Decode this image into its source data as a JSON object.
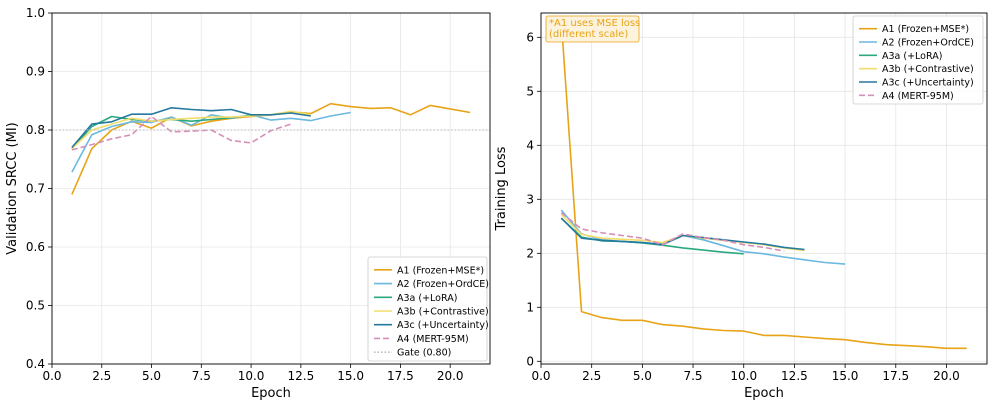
{
  "chart_data": [
    {
      "type": "line",
      "xlabel": "Epoch",
      "ylabel": "Validation SRCC (MI)",
      "xlim": [
        0.0,
        22.0
      ],
      "ylim": [
        0.4,
        1.0
      ],
      "xticks": [
        "0.0",
        "2.5",
        "5.0",
        "7.5",
        "10.0",
        "12.5",
        "15.0",
        "17.5",
        "20.0"
      ],
      "yticks": [
        "0.4",
        "0.5",
        "0.6",
        "0.7",
        "0.8",
        "0.9",
        "1.0"
      ],
      "grid": true,
      "legend_position": "lower-right",
      "series": [
        {
          "name": "A1 (Frozen+MSE*)",
          "color": "#E8A317",
          "dash": "solid",
          "x": [
            1,
            2,
            3,
            4,
            5,
            6,
            7,
            8,
            9,
            10,
            11,
            12,
            13,
            14,
            15,
            16,
            17,
            18,
            19,
            20,
            21
          ],
          "y": [
            0.69,
            0.768,
            0.8,
            0.815,
            0.803,
            0.822,
            0.807,
            0.815,
            0.82,
            0.823,
            0.826,
            0.831,
            0.828,
            0.845,
            0.84,
            0.837,
            0.838,
            0.826,
            0.842,
            0.836,
            0.83
          ]
        },
        {
          "name": "A2 (Frozen+OrdCE)",
          "color": "#6BB8E0",
          "dash": "solid",
          "x": [
            1,
            2,
            3,
            4,
            5,
            6,
            7,
            8,
            9,
            10,
            11,
            12,
            13,
            14,
            15
          ],
          "y": [
            0.728,
            0.792,
            0.806,
            0.814,
            0.813,
            0.822,
            0.808,
            0.826,
            0.82,
            0.826,
            0.817,
            0.82,
            0.816,
            0.824,
            0.83
          ]
        },
        {
          "name": "A3a (+LoRA)",
          "color": "#2CA87F",
          "dash": "solid",
          "x": [
            1,
            2,
            3,
            4,
            5,
            6,
            7,
            8,
            9,
            10
          ],
          "y": [
            0.768,
            0.806,
            0.823,
            0.818,
            0.815,
            0.818,
            0.815,
            0.818,
            0.821,
            0.825
          ]
        },
        {
          "name": "A3b (+Contrastive)",
          "color": "#F2DD6B",
          "dash": "solid",
          "x": [
            1,
            2,
            3,
            4,
            5,
            6,
            7,
            8,
            9,
            10,
            11,
            12,
            13
          ],
          "y": [
            0.768,
            0.8,
            0.81,
            0.82,
            0.815,
            0.818,
            0.82,
            0.822,
            0.822,
            0.824,
            0.826,
            0.832,
            0.826
          ]
        },
        {
          "name": "A3c (+Uncertainty)",
          "color": "#24799F",
          "dash": "solid",
          "x": [
            1,
            2,
            3,
            4,
            5,
            6,
            7,
            8,
            9,
            10,
            11,
            12,
            13
          ],
          "y": [
            0.77,
            0.81,
            0.814,
            0.827,
            0.827,
            0.838,
            0.835,
            0.833,
            0.835,
            0.826,
            0.826,
            0.829,
            0.824
          ]
        },
        {
          "name": "A4 (MERT-95M)",
          "color": "#D68FB8",
          "dash": "dashed",
          "x": [
            1,
            2,
            3,
            4,
            5,
            6,
            7,
            8,
            9,
            10,
            11,
            12
          ],
          "y": [
            0.766,
            0.775,
            0.785,
            0.792,
            0.823,
            0.797,
            0.798,
            0.8,
            0.782,
            0.778,
            0.799,
            0.81
          ]
        },
        {
          "name": "Gate (0.80)",
          "color": "#BBBBBB",
          "dash": "dotted",
          "hline": 0.8
        }
      ]
    },
    {
      "type": "line",
      "xlabel": "Epoch",
      "ylabel": "Training Loss",
      "xlim": [
        0.0,
        22.0
      ],
      "ylim": [
        -0.05,
        6.45
      ],
      "xticks": [
        "0.0",
        "2.5",
        "5.0",
        "7.5",
        "10.0",
        "12.5",
        "15.0",
        "17.5",
        "20.0"
      ],
      "yticks": [
        "0",
        "1",
        "2",
        "3",
        "4",
        "5",
        "6"
      ],
      "grid": true,
      "legend_position": "top-right",
      "annotation": "*A1 uses MSE loss\n(different scale)",
      "annotation_color": "#E8A317",
      "series": [
        {
          "name": "A1 (Frozen+MSE*)",
          "color": "#E8A317",
          "dash": "solid",
          "x": [
            1,
            2,
            3,
            4,
            5,
            6,
            7,
            8,
            9,
            10,
            11,
            12,
            13,
            14,
            15,
            16,
            17,
            18,
            19,
            20,
            21
          ],
          "y": [
            6.3,
            0.92,
            0.81,
            0.76,
            0.76,
            0.68,
            0.65,
            0.6,
            0.57,
            0.56,
            0.48,
            0.48,
            0.45,
            0.42,
            0.4,
            0.35,
            0.31,
            0.29,
            0.27,
            0.24,
            0.24
          ]
        },
        {
          "name": "A2 (Frozen+OrdCE)",
          "color": "#6BB8E0",
          "dash": "solid",
          "x": [
            1,
            2,
            3,
            4,
            5,
            6,
            7,
            8,
            9,
            10,
            11,
            12,
            13,
            14,
            15
          ],
          "y": [
            2.8,
            2.36,
            2.25,
            2.22,
            2.2,
            2.17,
            2.33,
            2.25,
            2.14,
            2.03,
            1.99,
            1.93,
            1.88,
            1.83,
            1.8
          ]
        },
        {
          "name": "A3a (+LoRA)",
          "color": "#2CA87F",
          "dash": "solid",
          "x": [
            1,
            2,
            3,
            4,
            5,
            6,
            7,
            8,
            9,
            10
          ],
          "y": [
            2.65,
            2.3,
            2.23,
            2.22,
            2.19,
            2.15,
            2.1,
            2.06,
            2.02,
            1.99
          ]
        },
        {
          "name": "A3b (+Contrastive)",
          "color": "#F2DD6B",
          "dash": "solid",
          "x": [
            1,
            2,
            3,
            4,
            5,
            6,
            7,
            8,
            9,
            10,
            11,
            12,
            13
          ],
          "y": [
            2.72,
            2.35,
            2.28,
            2.26,
            2.24,
            2.2,
            2.33,
            2.28,
            2.24,
            2.2,
            2.16,
            2.1,
            2.05
          ]
        },
        {
          "name": "A3c (+Uncertainty)",
          "color": "#24799F",
          "dash": "solid",
          "x": [
            1,
            2,
            3,
            4,
            5,
            6,
            7,
            8,
            9,
            10,
            11,
            12,
            13
          ],
          "y": [
            2.65,
            2.28,
            2.24,
            2.22,
            2.2,
            2.16,
            2.33,
            2.29,
            2.25,
            2.21,
            2.17,
            2.11,
            2.07
          ]
        },
        {
          "name": "A4 (MERT-95M)",
          "color": "#D68FB8",
          "dash": "dashed",
          "x": [
            1,
            2,
            3,
            4,
            5,
            6,
            7,
            8,
            9,
            10,
            11,
            12
          ],
          "y": [
            2.75,
            2.45,
            2.38,
            2.33,
            2.28,
            2.16,
            2.36,
            2.29,
            2.24,
            2.16,
            2.11,
            2.04
          ]
        }
      ]
    }
  ]
}
